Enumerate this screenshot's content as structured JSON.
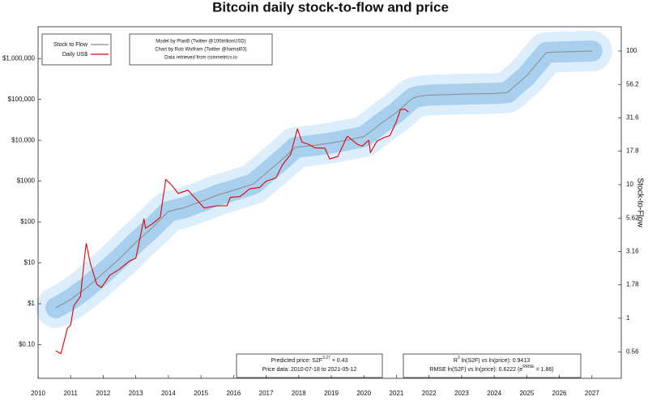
{
  "chart_data": {
    "type": "line",
    "title": "Bitcoin daily stock-to-flow and price",
    "y2label": "Stock-to-Flow",
    "log_y": true,
    "log_y2": true,
    "grid": false,
    "legend": "upper left",
    "xlim": [
      2010,
      2027.9
    ],
    "xticks": [
      2010,
      2011,
      2012,
      2013,
      2014,
      2015,
      2016,
      2017,
      2018,
      2019,
      2020,
      2021,
      2022,
      2023,
      2024,
      2025,
      2026,
      2027
    ],
    "ylim": [
      0.015,
      6000000
    ],
    "yticks": [
      {
        "value": 0.1,
        "label": "$0.10"
      },
      {
        "value": 1,
        "label": "$1"
      },
      {
        "value": 10,
        "label": "$10"
      },
      {
        "value": 100,
        "label": "$100"
      },
      {
        "value": 1000,
        "label": "$1000"
      },
      {
        "value": 10000,
        "label": "$10,000"
      },
      {
        "value": 100000,
        "label": "$100,000"
      },
      {
        "value": 1000000,
        "label": "$1,000,000"
      }
    ],
    "y2lim": [
      0.355,
      152
    ],
    "y2ticks": [
      0.56,
      1,
      1.78,
      3.16,
      5.62,
      10,
      17.8,
      31.6,
      56.2,
      100
    ],
    "series": [
      {
        "name": "Stock to Flow",
        "color": "#8a8a8a",
        "axis": "y2",
        "x": [
          2010.55,
          2011.0,
          2011.5,
          2012.0,
          2012.5,
          2013.0,
          2013.5,
          2014.0,
          2014.5,
          2015.0,
          2015.5,
          2016.0,
          2016.6,
          2017.0,
          2017.5,
          2017.9,
          2018.5,
          2019.0,
          2019.5,
          2020.0,
          2020.5,
          2021.0,
          2021.5,
          2021.7,
          2022.0,
          2023.0,
          2024.0,
          2024.4,
          2025.0,
          2025.6,
          2026.0,
          2027.0
        ],
        "values": [
          1.2,
          1.38,
          1.7,
          2.17,
          2.79,
          3.69,
          4.75,
          6.29,
          6.75,
          7.46,
          8.33,
          9.07,
          10.1,
          12.2,
          15.5,
          19.0,
          19.7,
          20.5,
          21.6,
          22.9,
          28.3,
          34.8,
          44.4,
          45.9,
          46.8,
          47.5,
          48.1,
          48.8,
          65.5,
          97.3,
          98.4,
          100
        ]
      },
      {
        "name": "Daily US$",
        "color": "#e00000",
        "x": [
          2010.55,
          2010.7,
          2010.9,
          2011.0,
          2011.1,
          2011.3,
          2011.45,
          2011.48,
          2011.6,
          2011.8,
          2011.95,
          2012.2,
          2012.5,
          2012.8,
          2013.0,
          2013.25,
          2013.3,
          2013.5,
          2013.75,
          2013.92,
          2014.1,
          2014.3,
          2014.6,
          2014.9,
          2015.1,
          2015.5,
          2015.8,
          2015.9,
          2016.2,
          2016.5,
          2016.8,
          2017.0,
          2017.3,
          2017.5,
          2017.75,
          2017.96,
          2018.1,
          2018.3,
          2018.5,
          2018.8,
          2018.95,
          2019.2,
          2019.45,
          2019.5,
          2019.8,
          2019.95,
          2020.15,
          2020.2,
          2020.4,
          2020.6,
          2020.8,
          2021.0,
          2021.12,
          2021.25,
          2021.36
        ],
        "values": [
          0.07,
          0.06,
          0.25,
          0.3,
          0.9,
          1.5,
          20,
          30,
          10,
          3,
          2.5,
          5,
          7,
          11,
          13,
          120,
          70,
          90,
          130,
          1100,
          800,
          500,
          600,
          330,
          220,
          250,
          250,
          400,
          420,
          650,
          700,
          1000,
          1200,
          2500,
          4500,
          19000,
          9000,
          8000,
          6500,
          6400,
          3500,
          4000,
          11000,
          12500,
          8000,
          7200,
          10000,
          5000,
          9500,
          11500,
          13000,
          29000,
          56000,
          58000,
          50000
        ]
      }
    ],
    "credits": [
      "Model by PlanB (Twitter @100trillionUSD)",
      "Chart by Rob Wolfram (Twitter @hamal03)",
      "Data retrieved from coinmetrics.io"
    ],
    "annotations": {
      "predicted": [
        "Predicted price: S2F",
        "3.27",
        " × 0.43"
      ],
      "price_data": "Price data: 2010-07-18 to 2021-05-12",
      "r2": [
        "R",
        "2",
        " ln(S2F) vs ln(price): 0.9413"
      ],
      "rmse": [
        "RMSE ln(S2F) vs ln(price): 0.6222 (e",
        "RMSE",
        " = 1.86)"
      ]
    }
  }
}
